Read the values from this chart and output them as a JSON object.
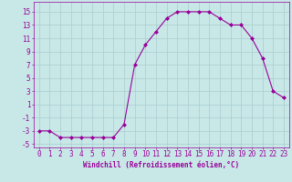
{
  "x": [
    0,
    1,
    2,
    3,
    4,
    5,
    6,
    7,
    8,
    9,
    10,
    11,
    12,
    13,
    14,
    15,
    16,
    17,
    18,
    19,
    20,
    21,
    22,
    23
  ],
  "y": [
    -3,
    -3,
    -4,
    -4,
    -4,
    -4,
    -4,
    -4,
    -2,
    7,
    10,
    12,
    14,
    15,
    15,
    15,
    15,
    14,
    13,
    13,
    11,
    8,
    3,
    2
  ],
  "line_color": "#990099",
  "marker": "D",
  "marker_size": 2.0,
  "bg_color": "#c8e8e8",
  "grid_color": "#aacccc",
  "xlabel": "Windchill (Refroidissement éolien,°C)",
  "xlim": [
    -0.5,
    23.5
  ],
  "ylim": [
    -5.5,
    16.5
  ],
  "yticks": [
    -5,
    -3,
    -1,
    1,
    3,
    5,
    7,
    9,
    11,
    13,
    15
  ],
  "xticks": [
    0,
    1,
    2,
    3,
    4,
    5,
    6,
    7,
    8,
    9,
    10,
    11,
    12,
    13,
    14,
    15,
    16,
    17,
    18,
    19,
    20,
    21,
    22,
    23
  ],
  "tick_color": "#990099",
  "label_fontsize": 5.5,
  "tick_fontsize": 5.5
}
